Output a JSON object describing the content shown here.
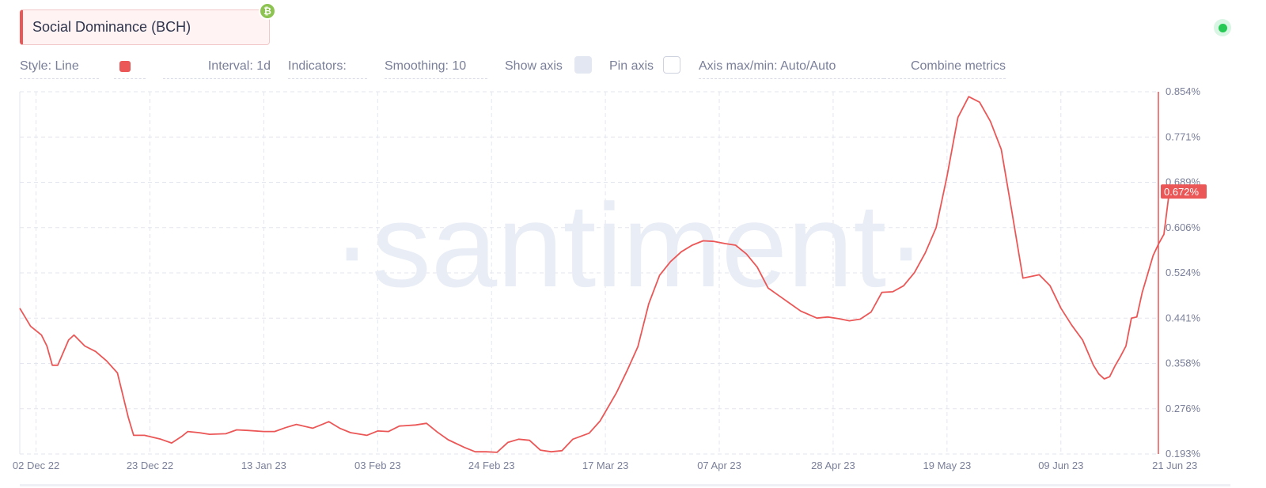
{
  "metric": {
    "title": "Social Dominance (BCH)",
    "badge_icon": "bitcoin-cash-icon",
    "color": "#eb5757"
  },
  "status": {
    "online_color": "#26c953"
  },
  "settings": {
    "style": "Style: Line",
    "interval": "Interval: 1d",
    "indicators": "Indicators:",
    "smoothing": "Smoothing: 10",
    "show_axis": "Show axis",
    "show_axis_checked": true,
    "pin_axis": "Pin axis",
    "pin_axis_checked": false,
    "axis_maxmin": "Axis max/min: Auto/Auto",
    "combine": "Combine metrics"
  },
  "watermark": "·santiment·",
  "chart_data": {
    "type": "line",
    "title": "Social Dominance (BCH)",
    "x_tick_labels": [
      "02 Dec 22",
      "23 Dec 22",
      "13 Jan 23",
      "03 Feb 23",
      "24 Feb 23",
      "17 Mar 23",
      "07 Apr 23",
      "28 Apr 23",
      "19 May 23",
      "09 Jun 23",
      "21 Jun 23"
    ],
    "y_tick_labels": [
      "0.854%",
      "0.771%",
      "0.689%",
      "0.606%",
      "0.524%",
      "0.441%",
      "0.358%",
      "0.276%",
      "0.193%"
    ],
    "ylim": [
      0.193,
      0.854
    ],
    "current_value_label": "0.672%",
    "current_value": 0.672,
    "x_start": "2022-11-29",
    "x_end": "2023-06-21",
    "grid": true,
    "series": [
      {
        "color": "#eb5757",
        "points": [
          [
            "2022-11-29",
            0.459
          ],
          [
            "2022-12-01",
            0.426
          ],
          [
            "2022-12-03",
            0.41
          ],
          [
            "2022-12-04",
            0.39
          ],
          [
            "2022-12-05",
            0.355
          ],
          [
            "2022-12-06",
            0.355
          ],
          [
            "2022-12-08",
            0.401
          ],
          [
            "2022-12-09",
            0.41
          ],
          [
            "2022-12-11",
            0.39
          ],
          [
            "2022-12-13",
            0.38
          ],
          [
            "2022-12-15",
            0.363
          ],
          [
            "2022-12-17",
            0.341
          ],
          [
            "2022-12-19",
            0.26
          ],
          [
            "2022-12-20",
            0.227
          ],
          [
            "2022-12-22",
            0.227
          ],
          [
            "2022-12-25",
            0.22
          ],
          [
            "2022-12-27",
            0.213
          ],
          [
            "2022-12-29",
            0.226
          ],
          [
            "2022-12-30",
            0.234
          ],
          [
            "2023-01-01",
            0.232
          ],
          [
            "2023-01-03",
            0.229
          ],
          [
            "2023-01-06",
            0.23
          ],
          [
            "2023-01-08",
            0.237
          ],
          [
            "2023-01-10",
            0.236
          ],
          [
            "2023-01-13",
            0.234
          ],
          [
            "2023-01-15",
            0.234
          ],
          [
            "2023-01-17",
            0.241
          ],
          [
            "2023-01-19",
            0.247
          ],
          [
            "2023-01-22",
            0.24
          ],
          [
            "2023-01-24",
            0.248
          ],
          [
            "2023-01-25",
            0.252
          ],
          [
            "2023-01-27",
            0.24
          ],
          [
            "2023-01-29",
            0.232
          ],
          [
            "2023-02-01",
            0.227
          ],
          [
            "2023-02-03",
            0.235
          ],
          [
            "2023-02-05",
            0.234
          ],
          [
            "2023-02-07",
            0.244
          ],
          [
            "2023-02-10",
            0.246
          ],
          [
            "2023-02-12",
            0.249
          ],
          [
            "2023-02-14",
            0.233
          ],
          [
            "2023-02-16",
            0.219
          ],
          [
            "2023-02-19",
            0.205
          ],
          [
            "2023-02-21",
            0.197
          ],
          [
            "2023-02-23",
            0.197
          ],
          [
            "2023-02-25",
            0.196
          ],
          [
            "2023-02-27",
            0.214
          ],
          [
            "2023-03-01",
            0.22
          ],
          [
            "2023-03-03",
            0.218
          ],
          [
            "2023-03-05",
            0.2
          ],
          [
            "2023-03-07",
            0.197
          ],
          [
            "2023-03-09",
            0.199
          ],
          [
            "2023-03-11",
            0.22
          ],
          [
            "2023-03-14",
            0.231
          ],
          [
            "2023-03-16",
            0.253
          ],
          [
            "2023-03-19",
            0.304
          ],
          [
            "2023-03-21",
            0.345
          ],
          [
            "2023-03-23",
            0.389
          ],
          [
            "2023-03-25",
            0.467
          ],
          [
            "2023-03-27",
            0.519
          ],
          [
            "2023-03-29",
            0.544
          ],
          [
            "2023-03-31",
            0.562
          ],
          [
            "2023-04-02",
            0.574
          ],
          [
            "2023-04-04",
            0.582
          ],
          [
            "2023-04-06",
            0.581
          ],
          [
            "2023-04-08",
            0.577
          ],
          [
            "2023-04-10",
            0.574
          ],
          [
            "2023-04-12",
            0.558
          ],
          [
            "2023-04-14",
            0.534
          ],
          [
            "2023-04-16",
            0.496
          ],
          [
            "2023-04-18",
            0.482
          ],
          [
            "2023-04-20",
            0.468
          ],
          [
            "2023-04-22",
            0.454
          ],
          [
            "2023-04-25",
            0.441
          ],
          [
            "2023-04-27",
            0.443
          ],
          [
            "2023-04-29",
            0.44
          ],
          [
            "2023-05-01",
            0.436
          ],
          [
            "2023-05-03",
            0.439
          ],
          [
            "2023-05-05",
            0.452
          ],
          [
            "2023-05-07",
            0.488
          ],
          [
            "2023-05-09",
            0.489
          ],
          [
            "2023-05-11",
            0.5
          ],
          [
            "2023-05-13",
            0.524
          ],
          [
            "2023-05-15",
            0.56
          ],
          [
            "2023-05-17",
            0.606
          ],
          [
            "2023-05-19",
            0.7
          ],
          [
            "2023-05-21",
            0.807
          ],
          [
            "2023-05-23",
            0.845
          ],
          [
            "2023-05-25",
            0.835
          ],
          [
            "2023-05-27",
            0.8
          ],
          [
            "2023-05-29",
            0.749
          ],
          [
            "2023-05-31",
            0.633
          ],
          [
            "2023-06-02",
            0.514
          ],
          [
            "2023-06-03",
            0.516
          ],
          [
            "2023-06-05",
            0.52
          ],
          [
            "2023-06-07",
            0.5
          ],
          [
            "2023-06-09",
            0.459
          ],
          [
            "2023-06-11",
            0.428
          ],
          [
            "2023-06-13",
            0.401
          ],
          [
            "2023-06-15",
            0.355
          ],
          [
            "2023-06-16",
            0.339
          ],
          [
            "2023-06-17",
            0.33
          ],
          [
            "2023-06-18",
            0.334
          ],
          [
            "2023-06-19",
            0.354
          ],
          [
            "2023-06-20",
            0.371
          ],
          [
            "2023-06-21",
            0.39
          ],
          [
            "2023-06-22",
            0.441
          ],
          [
            "2023-06-23",
            0.443
          ],
          [
            "2023-06-24",
            0.488
          ],
          [
            "2023-06-25",
            0.521
          ],
          [
            "2023-06-26",
            0.555
          ],
          [
            "2023-06-27",
            0.576
          ],
          [
            "2023-06-28",
            0.594
          ],
          [
            "2023-06-29",
            0.672
          ]
        ]
      }
    ]
  }
}
